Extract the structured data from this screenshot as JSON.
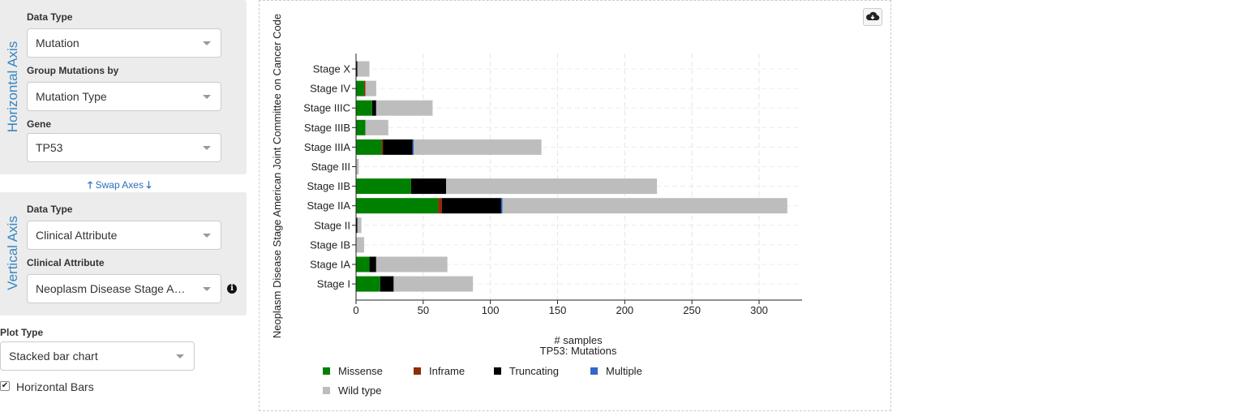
{
  "horizontal_axis": {
    "title": "Horizontal Axis",
    "data_type_label": "Data Type",
    "data_type_value": "Mutation",
    "group_by_label": "Group Mutations by",
    "group_by_value": "Mutation Type",
    "gene_label": "Gene",
    "gene_value": "TP53"
  },
  "swap_axes": {
    "up_icon": "🡑",
    "label": "Swap Axes",
    "down_icon": "🡓"
  },
  "vertical_axis": {
    "title": "Vertical Axis",
    "data_type_label": "Data Type",
    "data_type_value": "Clinical Attribute",
    "clinical_attribute_label": "Clinical Attribute",
    "clinical_attribute_value": "Neoplasm Disease Stage American Joint Committee on Cancer Code",
    "info_icon": "i"
  },
  "plot_type": {
    "label": "Plot Type",
    "value": "Stacked bar chart"
  },
  "horizontal_bars": {
    "label": "Horizontal Bars",
    "checked": true,
    "check_mark": "✔"
  },
  "download_icon": "cloud-download-icon",
  "chart_data": {
    "type": "bar",
    "orientation": "horizontal",
    "stacked": true,
    "title": "TP53: Mutations",
    "xlabel": "# samples",
    "ylabel": "Neoplasm Disease Stage American Joint Committee on Cancer Code",
    "xlim": [
      0,
      332
    ],
    "xticks": [
      0,
      50,
      100,
      150,
      200,
      250,
      300
    ],
    "grid": true,
    "legend_position": "bottom",
    "categories": [
      "Stage X",
      "Stage IV",
      "Stage IIIC",
      "Stage IIIB",
      "Stage IIIA",
      "Stage III",
      "Stage IIB",
      "Stage IIA",
      "Stage II",
      "Stage IB",
      "Stage IA",
      "Stage I"
    ],
    "series": [
      {
        "name": "Missense",
        "color": "#008000",
        "values": [
          0,
          6,
          12,
          7,
          19,
          0,
          41,
          61,
          0,
          0,
          10,
          18
        ]
      },
      {
        "name": "Inframe",
        "color": "#8b2e08",
        "values": [
          0,
          1,
          0,
          0,
          1,
          0,
          0,
          3,
          0,
          0,
          0,
          0
        ]
      },
      {
        "name": "Truncating",
        "color": "#000000",
        "values": [
          1,
          0,
          3,
          0,
          22,
          0,
          26,
          44,
          1,
          0,
          5,
          10
        ]
      },
      {
        "name": "Multiple",
        "color": "#3366cc",
        "values": [
          0,
          0,
          0,
          0,
          1,
          0,
          0,
          1,
          0,
          0,
          0,
          0
        ]
      },
      {
        "name": "Wild type",
        "color": "#bdbdbd",
        "values": [
          9,
          8,
          42,
          17,
          95,
          2,
          157,
          212,
          3,
          6,
          53,
          59
        ]
      }
    ]
  }
}
